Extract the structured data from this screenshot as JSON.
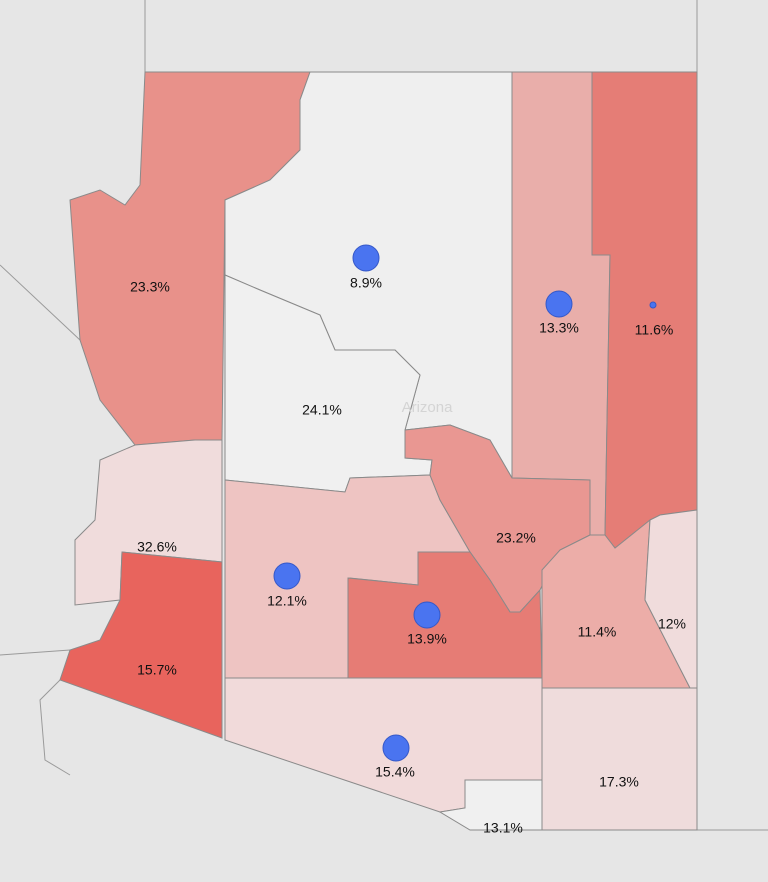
{
  "map_label": "Arizona",
  "regions": [
    {
      "label": "23.3%"
    },
    {
      "label": "8.9%"
    },
    {
      "label": "24.1%"
    },
    {
      "label": "13.3%"
    },
    {
      "label": "11.6%"
    },
    {
      "label": "32.6%"
    },
    {
      "label": "15.7%"
    },
    {
      "label": "12.1%"
    },
    {
      "label": "23.2%"
    },
    {
      "label": "13.9%"
    },
    {
      "label": "11.4%"
    },
    {
      "label": "12%"
    },
    {
      "label": "15.4%"
    },
    {
      "label": "17.3%"
    },
    {
      "label": "13.1%"
    }
  ]
}
